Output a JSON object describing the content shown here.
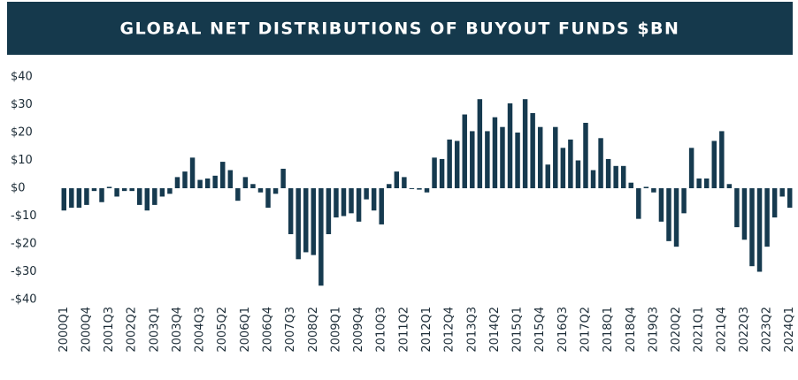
{
  "chart_data": {
    "type": "bar",
    "title": "GLOBAL NET DISTRIBUTIONS OF BUYOUT FUNDS $BN",
    "categories": [
      "2000Q1",
      null,
      null,
      "2000Q4",
      null,
      null,
      "2001Q3",
      null,
      null,
      "2002Q2",
      null,
      null,
      "2003Q1",
      null,
      null,
      "2003Q4",
      null,
      null,
      "2004Q3",
      null,
      null,
      "2005Q2",
      null,
      null,
      "2006Q1",
      null,
      null,
      "2006Q4",
      null,
      null,
      "2007Q3",
      null,
      null,
      "2008Q2",
      null,
      null,
      "2009Q1",
      null,
      null,
      "2009Q4",
      null,
      null,
      "2010Q3",
      null,
      null,
      "2011Q2",
      null,
      null,
      "2012Q1",
      null,
      null,
      "2012Q4",
      null,
      null,
      "2013Q3",
      null,
      null,
      "2014Q2",
      null,
      null,
      "2015Q1",
      null,
      null,
      "2015Q4",
      null,
      null,
      "2016Q3",
      null,
      null,
      "2017Q2",
      null,
      null,
      "2018Q1",
      null,
      null,
      "2018Q4",
      null,
      null,
      "2019Q3",
      null,
      null,
      "2020Q2",
      null,
      null,
      "2021Q1",
      null,
      null,
      "2021Q4",
      null,
      null,
      "2022Q3",
      null,
      null,
      "2023Q2",
      null,
      null,
      "2024Q1"
    ],
    "values": [
      -8,
      -7,
      -7,
      -6,
      -1,
      -5,
      0.5,
      -3,
      -1,
      -1,
      -6,
      -8,
      -6,
      -3,
      -2,
      4,
      6,
      11,
      3,
      3.5,
      4.5,
      9.5,
      6.5,
      -4.5,
      4,
      1.5,
      -1.5,
      -7,
      -2,
      7,
      -16.5,
      -25.5,
      -23,
      -24,
      -35,
      -16.5,
      -10.5,
      -10,
      -9,
      -12,
      -4,
      -8,
      -13,
      1.5,
      6,
      4,
      -0.3,
      -0.5,
      -1.5,
      11,
      10.5,
      17.5,
      17,
      26.5,
      20.5,
      32,
      20.5,
      25.5,
      22,
      30.5,
      20,
      32,
      27,
      22,
      8.5,
      22,
      14.5,
      17.5,
      10,
      23.5,
      6.5,
      18,
      10.5,
      8,
      8,
      2,
      -11,
      0.5,
      -1.5,
      -12,
      -19,
      -21,
      -9,
      14.5,
      3.5,
      3.5,
      17,
      20.5,
      1.5,
      -14,
      -18.5,
      -28,
      -30,
      -21,
      -10.5,
      -3,
      -7
    ],
    "color": "#163a4f",
    "ylim": [
      -40,
      40
    ],
    "yticks": [
      {
        "value": -40,
        "label": "-$40"
      },
      {
        "value": -30,
        "label": "-$30"
      },
      {
        "value": -20,
        "label": "-$20"
      },
      {
        "value": -10,
        "label": "-$10"
      },
      {
        "value": 0,
        "label": "$0"
      },
      {
        "value": 10,
        "label": "$10"
      },
      {
        "value": 20,
        "label": "$20"
      },
      {
        "value": 30,
        "label": "$30"
      },
      {
        "value": 40,
        "label": "$40"
      }
    ]
  }
}
